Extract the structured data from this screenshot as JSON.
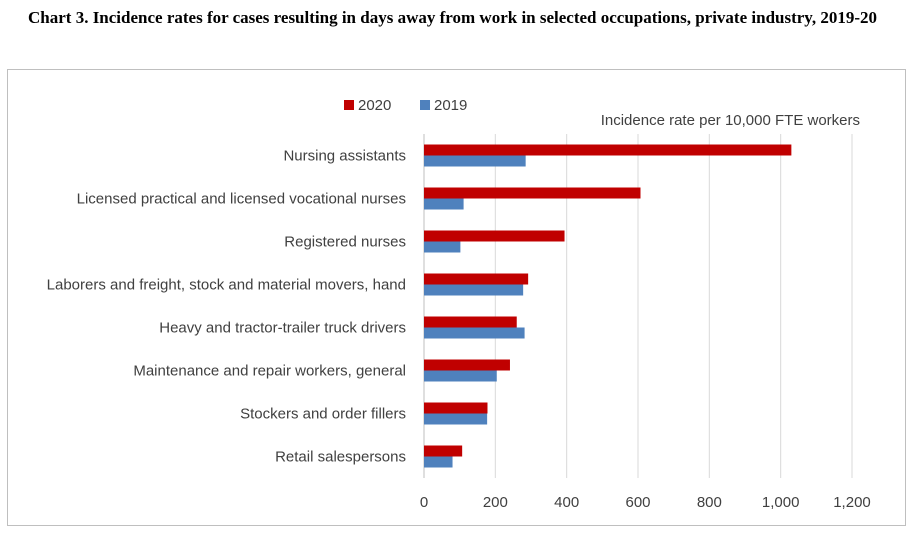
{
  "page": {
    "title": "Chart 3. Incidence rates for cases resulting in days away from work in selected occupations, private industry, 2019-20"
  },
  "colors": {
    "s2020": "#c00000",
    "s2019": "#4f81bd",
    "grid": "#d9d9d9",
    "text": "#404040"
  },
  "chart_data": {
    "type": "bar",
    "orientation": "horizontal",
    "title": "Chart 3. Incidence rates for cases resulting in days away from work in selected occupations, private industry, 2019-20",
    "xlabel": "Incidence rate per 10,000 FTE workers",
    "ylabel": "",
    "xlim": [
      0,
      1200
    ],
    "xticks": [
      0,
      200,
      400,
      600,
      800,
      1000,
      1200
    ],
    "xtick_labels": [
      "0",
      "200",
      "400",
      "600",
      "800",
      "1,000",
      "1,200"
    ],
    "grid": true,
    "legend_position": "top",
    "categories": [
      "Nursing assistants",
      "Licensed practical and licensed vocational nurses",
      "Registered nurses",
      "Laborers and freight, stock and material movers, hand",
      "Heavy and tractor-trailer truck drivers",
      "Maintenance and repair workers, general",
      "Stockers and order fillers",
      "Retail salespersons"
    ],
    "series": [
      {
        "name": "2020",
        "color": "#c00000",
        "values": [
          1030,
          607,
          394,
          292,
          260,
          241,
          178,
          107
        ]
      },
      {
        "name": "2019",
        "color": "#4f81bd",
        "values": [
          285,
          111,
          102,
          278,
          282,
          204,
          177,
          80
        ]
      }
    ]
  }
}
